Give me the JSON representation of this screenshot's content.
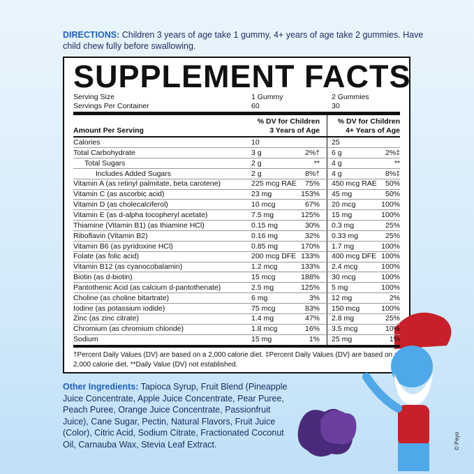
{
  "directions": {
    "label": "DIRECTIONS:",
    "text": "Children 3 years of age take 1 gummy, 4+ years of age take 2 gummies. Have child chew fully before swallowing."
  },
  "facts": {
    "title": "SUPPLEMENT FACTS",
    "serving": [
      [
        "Serving Size",
        "1 Gummy",
        "2 Gummies"
      ],
      [
        "Servings Per Container",
        "60",
        "30"
      ]
    ],
    "header": {
      "amount": "Amount Per Serving",
      "dv1": [
        "% DV for Children",
        "3 Years of Age"
      ],
      "dv2": [
        "% DV for Children",
        "4+ Years of Age"
      ]
    },
    "rows": [
      [
        "Calories",
        "10",
        null,
        "25",
        null
      ],
      [
        "Total Carbohydrate",
        "3 g",
        "2%†",
        "6 g",
        "2%‡"
      ],
      [
        "Total Sugars",
        "2 g",
        "**",
        "4 g",
        "**"
      ],
      [
        "Includes Added Sugars",
        "2 g",
        "8%†",
        "4 g",
        "8%‡"
      ],
      [
        "Vitamin A (as retinyl palmitate, beta carotene)",
        "225 mcg RAE",
        "75%",
        "450 mcg RAE",
        "50%"
      ],
      [
        "Vitamin C (as ascorbic acid)",
        "23 mg",
        "153%",
        "45 mg",
        "50%"
      ],
      [
        "Vitamin D (as cholecalciferol)",
        "10 mcg",
        "67%",
        "20 mcg",
        "100%"
      ],
      [
        "Vitamin E (as d-alpha tocopheryl acetate)",
        "7.5 mg",
        "125%",
        "15 mg",
        "100%"
      ],
      [
        "Thiamine (Vitamin B1) (as thiamine HCl)",
        "0.15 mg",
        "30%",
        "0.3 mg",
        "25%"
      ],
      [
        "Riboflavin (Vitamin B2)",
        "0.16 mg",
        "32%",
        "0.33 mg",
        "25%"
      ],
      [
        "Vitamin B6 (as pyridoxine HCl)",
        "0.85 mg",
        "170%",
        "1.7 mg",
        "100%"
      ],
      [
        "Folate (as folic acid)",
        "200 mcg DFE",
        "133%",
        "400 mcg DFE",
        "100%"
      ],
      [
        "Vitamin B12 (as cyanocobalamin)",
        "1.2 mcg",
        "133%",
        "2.4 mcg",
        "100%"
      ],
      [
        "Biotin (as d-biotin)",
        "15 mcg",
        "188%",
        "30 mcg",
        "100%"
      ],
      [
        "Pantothenic Acid (as calcium d-pantothenate)",
        "2.5 mg",
        "125%",
        "5 mg",
        "100%"
      ],
      [
        "Choline (as choline bitartrate)",
        "6 mg",
        "3%",
        "12 mg",
        "2%"
      ],
      [
        "Iodine (as potassium iodide)",
        "75 mcg",
        "83%",
        "150 mcg",
        "100%"
      ],
      [
        "Zinc (as zinc citrate)",
        "1.4 mg",
        "47%",
        "2.8 mg",
        "25%"
      ],
      [
        "Chromium (as chromium chloride)",
        "1.8 mcg",
        "16%",
        "3.5 mcg",
        "10%"
      ],
      [
        "Sodium",
        "15 mg",
        "1%",
        "25 mg",
        "1%"
      ]
    ],
    "footnote": "†Percent Daily Values (DV) are based on a 2,000 calorie diet. ‡Percent Daily Values (DV) are based on a 2,000 calorie diet. **Daily Value (DV) not established."
  },
  "ingredients": {
    "label": "Other Ingredients:",
    "text": "Tapioca Syrup, Fruit Blend (Pineapple Juice Concentrate, Apple Juice Concentrate, Pear Puree, Peach Puree, Orange Juice Concentrate, Passionfruit Juice), Cane Sugar, Pectin, Natural Flavors, Fruit Juice (Color), Citric Acid, Sodium Citrate, Fractionated Coconut Oil, Carnauba Wax, Stevia Leaf Extract."
  },
  "copyright": "© Peyo"
}
